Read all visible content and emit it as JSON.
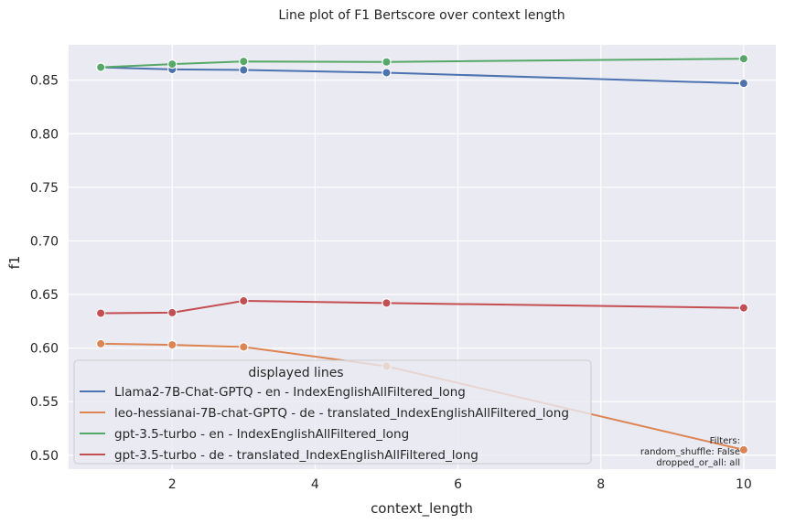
{
  "chart_data": {
    "type": "line",
    "title": "Line plot of F1 Bertscore over context length",
    "xlabel": "context_length",
    "ylabel": "f1",
    "xlim": [
      0.55,
      10.45
    ],
    "ylim": [
      0.487,
      0.883
    ],
    "x_ticks": [
      2,
      4,
      6,
      8,
      10
    ],
    "y_ticks": [
      0.5,
      0.55,
      0.6,
      0.65,
      0.7,
      0.75,
      0.8,
      0.85
    ],
    "x_tick_labels": [
      "2",
      "4",
      "6",
      "8",
      "10"
    ],
    "y_tick_labels": [
      "0.50",
      "0.55",
      "0.60",
      "0.65",
      "0.70",
      "0.75",
      "0.80",
      "0.85"
    ],
    "grid": true,
    "legend": {
      "title": "displayed lines",
      "placement": "lower-left"
    },
    "series": [
      {
        "name": "Llama2-7B-Chat-GPTQ - en - IndexEnglishAllFiltered_long",
        "color": "#4c72b0",
        "x": [
          1,
          2,
          3,
          5,
          10
        ],
        "y": [
          0.862,
          0.86,
          0.8595,
          0.857,
          0.847
        ]
      },
      {
        "name": "leo-hessianai-7B-chat-GPTQ - de - translated_IndexEnglishAllFiltered_long",
        "color": "#dd8452",
        "x": [
          1,
          2,
          3,
          5,
          10
        ],
        "y": [
          0.604,
          0.603,
          0.601,
          0.583,
          0.505
        ]
      },
      {
        "name": "gpt-3.5-turbo - en - IndexEnglishAllFiltered_long",
        "color": "#55a868",
        "x": [
          1,
          2,
          3,
          5,
          10
        ],
        "y": [
          0.862,
          0.865,
          0.8675,
          0.867,
          0.87
        ]
      },
      {
        "name": "gpt-3.5-turbo - de - translated_IndexEnglishAllFiltered_long",
        "color": "#c44e52",
        "x": [
          1,
          2,
          3,
          5,
          10
        ],
        "y": [
          0.6325,
          0.633,
          0.644,
          0.642,
          0.6375
        ]
      }
    ],
    "annotation": {
      "lines": [
        "Filters:",
        "random_shuffle: False",
        "dropped_or_all: all"
      ]
    },
    "background_color": "#eaeaf2",
    "grid_color": "#ffffff"
  }
}
